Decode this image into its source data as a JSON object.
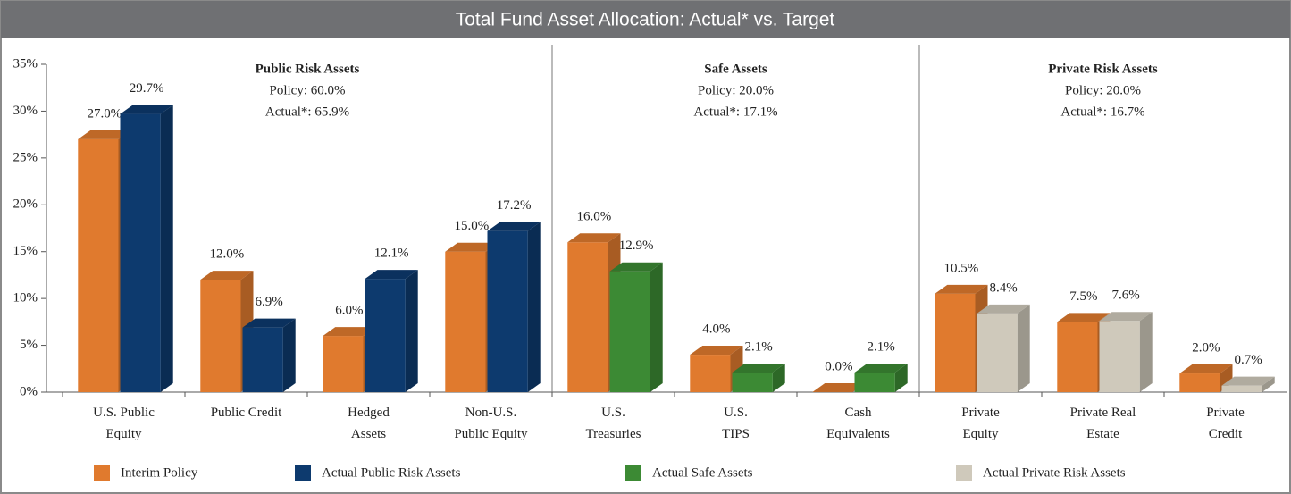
{
  "chart_data": {
    "type": "bar3d",
    "title": "Total Fund Asset Allocation: Actual* vs. Target",
    "categories": [
      "U.S. Public\nEquity",
      "Public Credit",
      "Hedged\nAssets",
      "Non-U.S.\nPublic Equity",
      "U.S.\nTreasuries",
      "U.S.\nTIPS",
      "Cash\nEquivalents",
      "Private\nEquity",
      "Private Real\nEstate",
      "Private\nCredit"
    ],
    "series": [
      {
        "name": "Interim Policy",
        "color": "#e07a2e",
        "values": [
          27.0,
          12.0,
          6.0,
          15.0,
          16.0,
          4.0,
          0.0,
          10.5,
          7.5,
          2.0
        ],
        "value_labels": [
          "27.0%",
          "12.0%",
          "6.0%",
          "15.0%",
          "16.0%",
          "4.0%",
          "0.0%",
          "10.5%",
          "7.5%",
          "2.0%"
        ]
      },
      {
        "name": "Actual Public Risk Assets",
        "color": "#0d3a6e",
        "values": [
          29.7,
          6.9,
          12.1,
          17.2,
          null,
          null,
          null,
          null,
          null,
          null
        ],
        "value_labels": [
          "29.7%",
          "6.9%",
          "12.1%",
          "17.2%",
          null,
          null,
          null,
          null,
          null,
          null
        ]
      },
      {
        "name": "Actual Safe Assets",
        "color": "#3c8a34",
        "values": [
          null,
          null,
          null,
          null,
          12.9,
          2.1,
          2.1,
          null,
          null,
          null
        ],
        "value_labels": [
          null,
          null,
          null,
          null,
          "12.9%",
          "2.1%",
          "2.1%",
          null,
          null,
          null
        ]
      },
      {
        "name": "Actual Private Risk Assets",
        "color": "#cfc9bb",
        "values": [
          null,
          null,
          null,
          null,
          null,
          null,
          null,
          8.4,
          7.6,
          0.7
        ],
        "value_labels": [
          null,
          null,
          null,
          null,
          null,
          null,
          null,
          "8.4%",
          "7.6%",
          "0.7%"
        ]
      }
    ],
    "groups": [
      {
        "title": "Public Risk Assets",
        "policy": "Policy: 60.0%",
        "actual": "Actual*: 65.9%"
      },
      {
        "title": "Safe Assets",
        "policy": "Policy: 20.0%",
        "actual": "Actual*: 17.1%"
      },
      {
        "title": "Private Risk Assets",
        "policy": "Policy: 20.0%",
        "actual": "Actual*: 16.7%"
      }
    ],
    "ylim": [
      0,
      35
    ],
    "yticks": [
      {
        "value": 0,
        "label": "0%"
      },
      {
        "value": 5,
        "label": "5%"
      },
      {
        "value": 10,
        "label": "10%"
      },
      {
        "value": 15,
        "label": "15%"
      },
      {
        "value": 20,
        "label": "20%"
      },
      {
        "value": 25,
        "label": "25%"
      },
      {
        "value": 30,
        "label": "30%"
      },
      {
        "value": 35,
        "label": "35%"
      }
    ],
    "grid": false
  }
}
